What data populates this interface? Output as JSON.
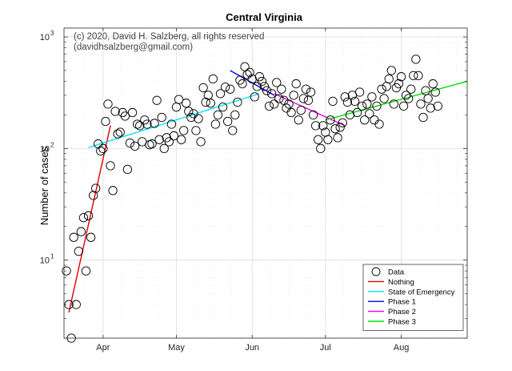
{
  "chart_data": {
    "type": "scatter",
    "title": "Central Virginia",
    "ylabel": "Number of cases",
    "xlabel": "",
    "yscale": "log",
    "ylim": [
      2,
      1200
    ],
    "xlim": [
      0,
      165
    ],
    "x_ticks": [
      {
        "label": "Apr",
        "day": 16
      },
      {
        "label": "May",
        "day": 46
      },
      {
        "label": "Jun",
        "day": 77
      },
      {
        "label": "Jul",
        "day": 107
      },
      {
        "label": "Aug",
        "day": 138
      }
    ],
    "y_ticks": [
      {
        "base": "10",
        "exp": "1",
        "value": 10
      },
      {
        "base": "10",
        "exp": "2",
        "value": 100
      },
      {
        "base": "10",
        "exp": "3",
        "value": 1000
      }
    ],
    "annotation_lines": [
      "(c) 2020, David H. Salzberg, all rights reserved",
      "(davidhsalzberg@gmail.com)"
    ],
    "legend_position": "bottom-right",
    "series": [
      {
        "name": "Data",
        "style": "open-circle",
        "color": "#000000",
        "points": [
          [
            1,
            8
          ],
          [
            2,
            4
          ],
          [
            3,
            2
          ],
          [
            4,
            16
          ],
          [
            5,
            4
          ],
          [
            6,
            12
          ],
          [
            7,
            18
          ],
          [
            8,
            24
          ],
          [
            9,
            8
          ],
          [
            10,
            25
          ],
          [
            11,
            16
          ],
          [
            12,
            38
          ],
          [
            13,
            44
          ],
          [
            14,
            110
          ],
          [
            15,
            95
          ],
          [
            16,
            100
          ],
          [
            17,
            175
          ],
          [
            18,
            250
          ],
          [
            19,
            70
          ],
          [
            20,
            42
          ],
          [
            21,
            215
          ],
          [
            22,
            135
          ],
          [
            23,
            140
          ],
          [
            24,
            210
          ],
          [
            25,
            195
          ],
          [
            26,
            65
          ],
          [
            27,
            112
          ],
          [
            28,
            210
          ],
          [
            29,
            105
          ],
          [
            30,
            165
          ],
          [
            31,
            160
          ],
          [
            32,
            115
          ],
          [
            33,
            180
          ],
          [
            34,
            165
          ],
          [
            35,
            108
          ],
          [
            36,
            110
          ],
          [
            37,
            168
          ],
          [
            38,
            270
          ],
          [
            39,
            120
          ],
          [
            40,
            190
          ],
          [
            41,
            100
          ],
          [
            42,
            125
          ],
          [
            43,
            115
          ],
          [
            44,
            165
          ],
          [
            45,
            130
          ],
          [
            46,
            235
          ],
          [
            47,
            275
          ],
          [
            48,
            120
          ],
          [
            49,
            145
          ],
          [
            50,
            255
          ],
          [
            51,
            215
          ],
          [
            52,
            190
          ],
          [
            53,
            205
          ],
          [
            54,
            145
          ],
          [
            55,
            185
          ],
          [
            56,
            115
          ],
          [
            57,
            350
          ],
          [
            58,
            260
          ],
          [
            59,
            300
          ],
          [
            60,
            255
          ],
          [
            61,
            420
          ],
          [
            62,
            165
          ],
          [
            63,
            200
          ],
          [
            64,
            310
          ],
          [
            65,
            235
          ],
          [
            66,
            355
          ],
          [
            67,
            175
          ],
          [
            68,
            340
          ],
          [
            69,
            145
          ],
          [
            70,
            200
          ],
          [
            71,
            260
          ],
          [
            72,
            410
          ],
          [
            73,
            380
          ],
          [
            74,
            540
          ],
          [
            75,
            460
          ],
          [
            76,
            480
          ],
          [
            77,
            420
          ],
          [
            78,
            290
          ],
          [
            79,
            360
          ],
          [
            80,
            440
          ],
          [
            81,
            400
          ],
          [
            82,
            360
          ],
          [
            83,
            330
          ],
          [
            84,
            240
          ],
          [
            85,
            310
          ],
          [
            86,
            250
          ],
          [
            87,
            390
          ],
          [
            88,
            280
          ],
          [
            89,
            340
          ],
          [
            90,
            270
          ],
          [
            91,
            230
          ],
          [
            92,
            250
          ],
          [
            93,
            210
          ],
          [
            94,
            300
          ],
          [
            95,
            380
          ],
          [
            96,
            180
          ],
          [
            97,
            220
          ],
          [
            98,
            280
          ],
          [
            99,
            340
          ],
          [
            100,
            270
          ],
          [
            101,
            320
          ],
          [
            102,
            200
          ],
          [
            103,
            160
          ],
          [
            104,
            120
          ],
          [
            105,
            100
          ],
          [
            106,
            160
          ],
          [
            107,
            140
          ],
          [
            108,
            120
          ],
          [
            109,
            180
          ],
          [
            110,
            265
          ],
          [
            111,
            150
          ],
          [
            112,
            125
          ],
          [
            113,
            155
          ],
          [
            114,
            170
          ],
          [
            115,
            290
          ],
          [
            116,
            260
          ],
          [
            117,
            200
          ],
          [
            118,
            300
          ],
          [
            119,
            265
          ],
          [
            120,
            210
          ],
          [
            121,
            320
          ],
          [
            122,
            240
          ],
          [
            123,
            180
          ],
          [
            124,
            250
          ],
          [
            125,
            205
          ],
          [
            126,
            290
          ],
          [
            127,
            180
          ],
          [
            128,
            240
          ],
          [
            129,
            165
          ],
          [
            130,
            340
          ],
          [
            131,
            280
          ],
          [
            132,
            360
          ],
          [
            133,
            420
          ],
          [
            134,
            500
          ],
          [
            135,
            250
          ],
          [
            136,
            350
          ],
          [
            137,
            380
          ],
          [
            138,
            440
          ],
          [
            139,
            240
          ],
          [
            140,
            300
          ],
          [
            141,
            280
          ],
          [
            142,
            340
          ],
          [
            143,
            450
          ],
          [
            144,
            630
          ],
          [
            145,
            450
          ],
          [
            146,
            250
          ],
          [
            147,
            190
          ],
          [
            148,
            330
          ],
          [
            149,
            280
          ],
          [
            150,
            230
          ],
          [
            151,
            380
          ],
          [
            152,
            320
          ],
          [
            153,
            240
          ]
        ]
      },
      {
        "name": "Nothing",
        "style": "line",
        "color": "#dd0000",
        "points": [
          [
            2,
            3.4
          ],
          [
            19,
            160
          ]
        ]
      },
      {
        "name": "State of Emergency",
        "style": "line",
        "color": "#00e5f0",
        "points": [
          [
            10,
            102
          ],
          [
            80,
            310
          ]
        ]
      },
      {
        "name": "Phase 1",
        "style": "line",
        "color": "#0000ee",
        "points": [
          [
            68,
            500
          ],
          [
            86,
            300
          ]
        ]
      },
      {
        "name": "Phase 2",
        "style": "line",
        "color": "#ee00ee",
        "points": [
          [
            86,
            310
          ],
          [
            115,
            160
          ]
        ]
      },
      {
        "name": "Phase 3",
        "style": "line",
        "color": "#00dd00",
        "points": [
          [
            107,
            180
          ],
          [
            165,
            400
          ]
        ]
      }
    ]
  }
}
